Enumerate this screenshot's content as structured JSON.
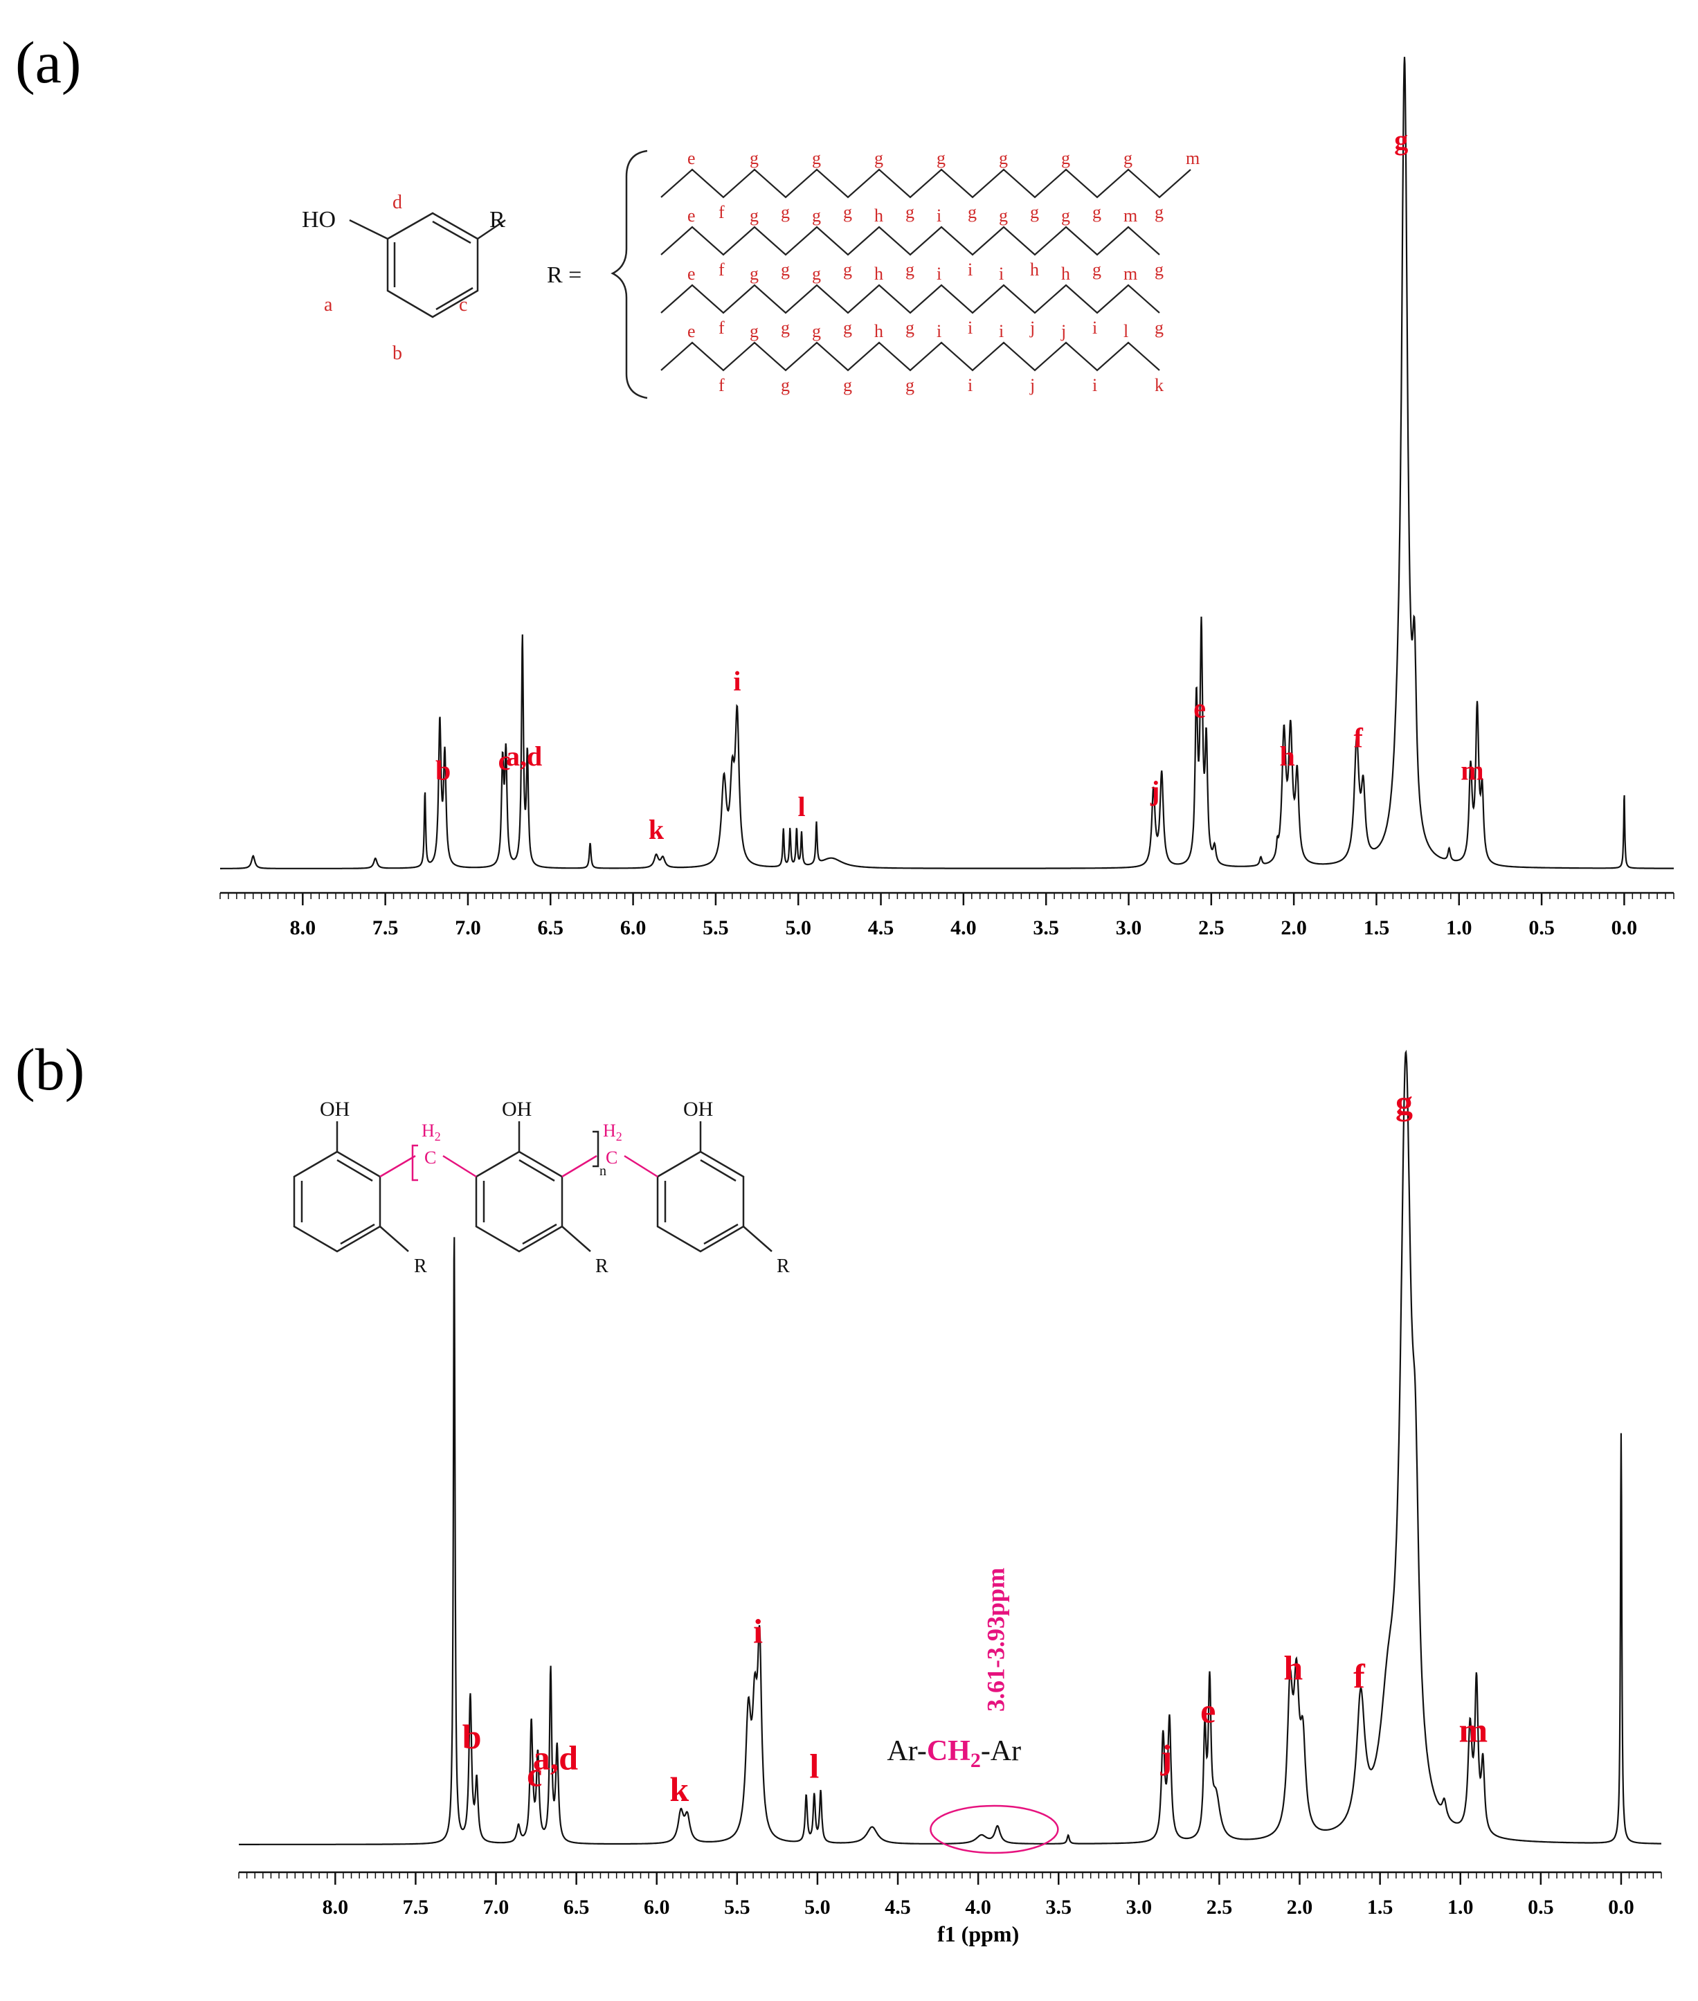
{
  "chart_data": [
    {
      "panel_label": "(a)",
      "type": "line",
      "xlabel": "",
      "ylabel": "",
      "xlim": [
        8.5,
        -0.3
      ],
      "x_reversed": true,
      "xticks": [
        8.0,
        7.5,
        7.0,
        6.5,
        6.0,
        5.5,
        5.0,
        4.5,
        4.0,
        3.5,
        3.0,
        2.5,
        2.0,
        1.5,
        1.0,
        0.5,
        0.0
      ],
      "xtick_labels": [
        "8.0",
        "7.5",
        "7.0",
        "6.5",
        "6.0",
        "5.5",
        "5.0",
        "4.5",
        "4.0",
        "3.5",
        "3.0",
        "2.5",
        "2.0",
        "1.5",
        "1.0",
        "0.5",
        "0.0"
      ],
      "grid": false,
      "peaks": [
        {
          "x": 8.3,
          "h": 0.015,
          "w": 0.012
        },
        {
          "x": 7.56,
          "h": 0.012,
          "w": 0.012
        },
        {
          "x": 7.26,
          "h": 0.09,
          "w": 0.005
        },
        {
          "x": 7.17,
          "h": 0.17,
          "w": 0.009
        },
        {
          "x": 7.14,
          "h": 0.13,
          "w": 0.009
        },
        {
          "x": 6.79,
          "h": 0.12,
          "w": 0.008
        },
        {
          "x": 6.77,
          "h": 0.13,
          "w": 0.008
        },
        {
          "x": 6.67,
          "h": 0.27,
          "w": 0.007
        },
        {
          "x": 6.64,
          "h": 0.13,
          "w": 0.007
        },
        {
          "x": 6.26,
          "h": 0.03,
          "w": 0.006
        },
        {
          "x": 5.86,
          "h": 0.015,
          "w": 0.015
        },
        {
          "x": 5.82,
          "h": 0.012,
          "w": 0.015
        },
        {
          "x": 5.45,
          "h": 0.1,
          "w": 0.018
        },
        {
          "x": 5.4,
          "h": 0.09,
          "w": 0.015
        },
        {
          "x": 5.37,
          "h": 0.17,
          "w": 0.014
        },
        {
          "x": 5.09,
          "h": 0.045,
          "w": 0.005
        },
        {
          "x": 5.05,
          "h": 0.045,
          "w": 0.005
        },
        {
          "x": 5.01,
          "h": 0.045,
          "w": 0.005
        },
        {
          "x": 4.98,
          "h": 0.04,
          "w": 0.005
        },
        {
          "x": 4.89,
          "h": 0.05,
          "w": 0.005
        },
        {
          "x": 4.8,
          "h": 0.012,
          "w": 0.08
        },
        {
          "x": 2.85,
          "h": 0.09,
          "w": 0.012
        },
        {
          "x": 2.8,
          "h": 0.11,
          "w": 0.012
        },
        {
          "x": 2.59,
          "h": 0.19,
          "w": 0.009
        },
        {
          "x": 2.56,
          "h": 0.27,
          "w": 0.009
        },
        {
          "x": 2.53,
          "h": 0.14,
          "w": 0.009
        },
        {
          "x": 2.48,
          "h": 0.02,
          "w": 0.01
        },
        {
          "x": 2.2,
          "h": 0.01,
          "w": 0.008
        },
        {
          "x": 2.1,
          "h": 0.015,
          "w": 0.006
        },
        {
          "x": 2.06,
          "h": 0.15,
          "w": 0.014
        },
        {
          "x": 2.02,
          "h": 0.15,
          "w": 0.014
        },
        {
          "x": 1.98,
          "h": 0.1,
          "w": 0.012
        },
        {
          "x": 1.62,
          "h": 0.14,
          "w": 0.017
        },
        {
          "x": 1.58,
          "h": 0.08,
          "w": 0.014
        },
        {
          "x": 1.37,
          "h": 0.06,
          "w": 0.03
        },
        {
          "x": 1.33,
          "h": 0.93,
          "w": 0.022
        },
        {
          "x": 1.27,
          "h": 0.18,
          "w": 0.014
        },
        {
          "x": 1.06,
          "h": 0.015,
          "w": 0.008
        },
        {
          "x": 0.93,
          "h": 0.11,
          "w": 0.011
        },
        {
          "x": 0.89,
          "h": 0.18,
          "w": 0.011
        },
        {
          "x": 0.86,
          "h": 0.08,
          "w": 0.01
        },
        {
          "x": 0.0,
          "h": 0.09,
          "w": 0.004
        }
      ],
      "annotations": [
        {
          "text": "b",
          "x": 7.15
        },
        {
          "text": "c",
          "x": 6.78
        },
        {
          "text": "a,d",
          "x": 6.66
        },
        {
          "text": "k",
          "x": 5.86
        },
        {
          "text": "i",
          "x": 5.37
        },
        {
          "text": "l",
          "x": 4.98
        },
        {
          "text": "j",
          "x": 2.84
        },
        {
          "text": "e",
          "x": 2.57
        },
        {
          "text": "h",
          "x": 2.04
        },
        {
          "text": "f",
          "x": 1.61
        },
        {
          "text": "g",
          "x": 1.35
        },
        {
          "text": "m",
          "x": 0.92
        }
      ]
    },
    {
      "panel_label": "(b)",
      "type": "line",
      "xlabel": "f1 (ppm)",
      "ylabel": "",
      "xlim": [
        8.6,
        -0.25
      ],
      "x_reversed": true,
      "xticks": [
        8.0,
        7.5,
        7.0,
        6.5,
        6.0,
        5.5,
        5.0,
        4.5,
        4.0,
        3.5,
        3.0,
        2.5,
        2.0,
        1.5,
        1.0,
        0.5,
        0.0
      ],
      "xtick_labels": [
        "8.0",
        "7.5",
        "7.0",
        "6.5",
        "6.0",
        "5.5",
        "5.0",
        "4.5",
        "4.0",
        "3.5",
        "3.0",
        "2.5",
        "2.0",
        "1.5",
        "1.0",
        "0.5",
        "0.0"
      ],
      "grid": false,
      "peaks": [
        {
          "x": 7.26,
          "h": 0.72,
          "w": 0.006
        },
        {
          "x": 7.16,
          "h": 0.17,
          "w": 0.01
        },
        {
          "x": 7.12,
          "h": 0.07,
          "w": 0.01
        },
        {
          "x": 6.86,
          "h": 0.02,
          "w": 0.012
        },
        {
          "x": 6.78,
          "h": 0.14,
          "w": 0.01
        },
        {
          "x": 6.74,
          "h": 0.1,
          "w": 0.01
        },
        {
          "x": 6.66,
          "h": 0.2,
          "w": 0.008
        },
        {
          "x": 6.62,
          "h": 0.11,
          "w": 0.01
        },
        {
          "x": 5.85,
          "h": 0.035,
          "w": 0.02
        },
        {
          "x": 5.81,
          "h": 0.03,
          "w": 0.02
        },
        {
          "x": 5.43,
          "h": 0.14,
          "w": 0.02
        },
        {
          "x": 5.39,
          "h": 0.13,
          "w": 0.018
        },
        {
          "x": 5.36,
          "h": 0.21,
          "w": 0.015
        },
        {
          "x": 5.07,
          "h": 0.055,
          "w": 0.008
        },
        {
          "x": 5.02,
          "h": 0.055,
          "w": 0.008
        },
        {
          "x": 4.98,
          "h": 0.06,
          "w": 0.008
        },
        {
          "x": 4.66,
          "h": 0.02,
          "w": 0.04
        },
        {
          "x": 3.98,
          "h": 0.01,
          "w": 0.04
        },
        {
          "x": 3.88,
          "h": 0.02,
          "w": 0.02
        },
        {
          "x": 3.44,
          "h": 0.01,
          "w": 0.008
        },
        {
          "x": 2.85,
          "h": 0.12,
          "w": 0.012
        },
        {
          "x": 2.81,
          "h": 0.14,
          "w": 0.012
        },
        {
          "x": 2.59,
          "h": 0.12,
          "w": 0.01
        },
        {
          "x": 2.56,
          "h": 0.17,
          "w": 0.01
        },
        {
          "x": 2.52,
          "h": 0.05,
          "w": 0.03
        },
        {
          "x": 2.06,
          "h": 0.16,
          "w": 0.02
        },
        {
          "x": 2.02,
          "h": 0.16,
          "w": 0.02
        },
        {
          "x": 1.98,
          "h": 0.1,
          "w": 0.02
        },
        {
          "x": 1.62,
          "h": 0.15,
          "w": 0.03
        },
        {
          "x": 1.45,
          "h": 0.12,
          "w": 0.06
        },
        {
          "x": 1.34,
          "h": 0.86,
          "w": 0.04
        },
        {
          "x": 1.28,
          "h": 0.25,
          "w": 0.025
        },
        {
          "x": 1.1,
          "h": 0.02,
          "w": 0.015
        },
        {
          "x": 0.94,
          "h": 0.12,
          "w": 0.015
        },
        {
          "x": 0.9,
          "h": 0.17,
          "w": 0.012
        },
        {
          "x": 0.86,
          "h": 0.08,
          "w": 0.012
        },
        {
          "x": 0.0,
          "h": 0.48,
          "w": 0.005
        }
      ],
      "annotations": [
        {
          "text": "b",
          "x": 7.15
        },
        {
          "text": "c",
          "x": 6.76
        },
        {
          "text": "a,d",
          "x": 6.63
        },
        {
          "text": "k",
          "x": 5.86
        },
        {
          "text": "i",
          "x": 5.37
        },
        {
          "text": "l",
          "x": 5.02
        },
        {
          "text": "j",
          "x": 2.83
        },
        {
          "text": "e",
          "x": 2.57
        },
        {
          "text": "h",
          "x": 2.04
        },
        {
          "text": "f",
          "x": 1.63
        },
        {
          "text": "g",
          "x": 1.35
        },
        {
          "text": "m",
          "x": 0.92
        }
      ],
      "highlight": {
        "range_text": "3.61-3.93ppm",
        "group_text_left": "Ar-",
        "group_text_ch": "CH",
        "group_text_sub": "2",
        "group_text_right": "-Ar",
        "x": 3.9
      }
    }
  ],
  "structures": {
    "a": {
      "ho": "HO",
      "r": "R",
      "r_eq": "R =",
      "ring_labels": [
        "a",
        "b",
        "c",
        "d"
      ],
      "chain_rows": [
        {
          "top": [
            "e",
            "g",
            "g",
            "g",
            "g",
            "g",
            "g",
            "g",
            "m"
          ],
          "bottom": [
            "f",
            "g",
            "g",
            "g",
            "g",
            "g",
            "g",
            "g"
          ]
        },
        {
          "top": [
            "e",
            "g",
            "g",
            "h",
            "i",
            "g",
            "g",
            "m"
          ],
          "bottom": [
            "f",
            "g",
            "g",
            "g",
            "i",
            "h",
            "g",
            "g"
          ]
        },
        {
          "top": [
            "e",
            "g",
            "g",
            "h",
            "i",
            "i",
            "h",
            "m"
          ],
          "bottom": [
            "f",
            "g",
            "g",
            "g",
            "i",
            "j",
            "i",
            "g"
          ]
        },
        {
          "top": [
            "e",
            "g",
            "g",
            "h",
            "i",
            "i",
            "j",
            "l"
          ],
          "bottom": [
            "f",
            "g",
            "g",
            "g",
            "i",
            "j",
            "i",
            "k"
          ]
        }
      ]
    },
    "b": {
      "oh": [
        "OH",
        "OH",
        "OH"
      ],
      "r": [
        "R",
        "R",
        "R"
      ],
      "h2": [
        "H",
        "H"
      ],
      "h2_sub": "2",
      "c": [
        "C",
        "C"
      ],
      "n": "n"
    }
  },
  "colors": {
    "peak_label": "#e8001c",
    "highlight": "#e6127e",
    "structure_label": "#d12a2a",
    "trace": "#111111"
  }
}
